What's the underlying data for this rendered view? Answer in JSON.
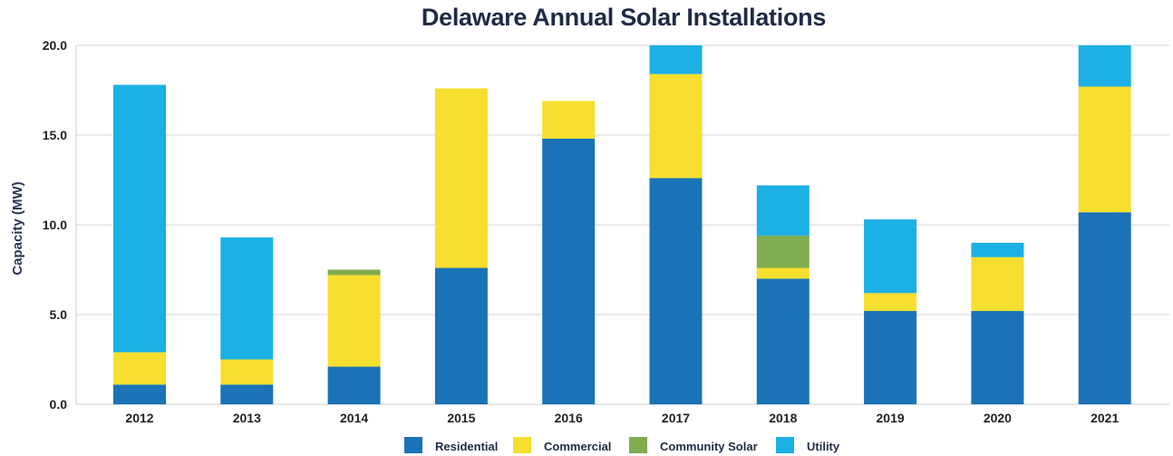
{
  "chart_data": {
    "type": "bar",
    "stacked": true,
    "title": "Delaware Annual Solar Installations",
    "xlabel": "",
    "ylabel": "Capacity (MW)",
    "ylim": [
      0,
      20
    ],
    "yticks": [
      "0.0",
      "5.0",
      "10.0",
      "15.0",
      "20.0"
    ],
    "grid": true,
    "legend_position": "bottom",
    "categories": [
      "2012",
      "2013",
      "2014",
      "2015",
      "2016",
      "2017",
      "2018",
      "2019",
      "2020",
      "2021"
    ],
    "series": [
      {
        "name": "Residential",
        "color": "#1a73b6",
        "values": [
          1.1,
          1.1,
          2.1,
          7.6,
          14.8,
          12.6,
          7.0,
          5.2,
          5.2,
          10.7
        ]
      },
      {
        "name": "Commercial",
        "color": "#f6df2e",
        "values": [
          1.8,
          1.4,
          5.1,
          10.0,
          2.1,
          5.8,
          0.6,
          1.0,
          3.0,
          7.0
        ]
      },
      {
        "name": "Community Solar",
        "color": "#80ad4f",
        "values": [
          0,
          0,
          0.3,
          0,
          0,
          0,
          1.8,
          0,
          0,
          0
        ]
      },
      {
        "name": "Utility",
        "color": "#1cb0e4",
        "values": [
          14.9,
          6.8,
          0,
          0,
          0,
          1.6,
          2.8,
          4.1,
          0.8,
          2.3
        ]
      }
    ]
  }
}
